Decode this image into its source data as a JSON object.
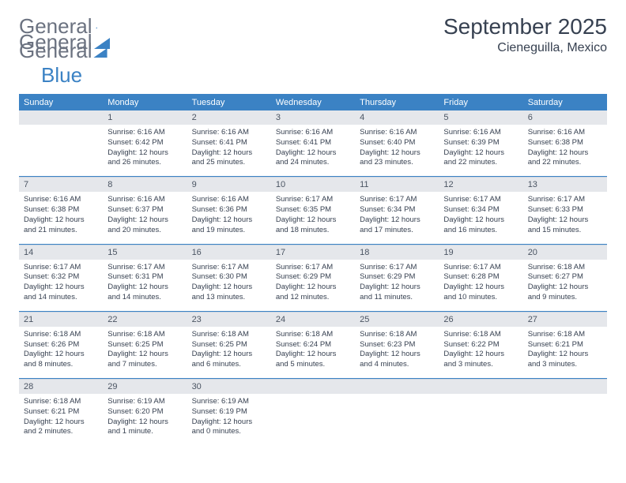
{
  "brand": {
    "part1": "General",
    "part2": "Blue"
  },
  "title": "September 2025",
  "location": "Cieneguilla, Mexico",
  "colors": {
    "brand_blue": "#3b82c4",
    "brand_gray": "#6b7280",
    "header_bg": "#3b82c4",
    "header_text": "#ffffff",
    "daynum_bg": "#e5e7eb",
    "daynum_text": "#4b5563",
    "body_text": "#374151",
    "rule": "#3b82c4"
  },
  "dow": [
    "Sunday",
    "Monday",
    "Tuesday",
    "Wednesday",
    "Thursday",
    "Friday",
    "Saturday"
  ],
  "weeks": [
    {
      "nums": [
        "",
        "1",
        "2",
        "3",
        "4",
        "5",
        "6"
      ],
      "cells": [
        null,
        {
          "sr": "Sunrise: 6:16 AM",
          "ss": "Sunset: 6:42 PM",
          "d1": "Daylight: 12 hours",
          "d2": "and 26 minutes."
        },
        {
          "sr": "Sunrise: 6:16 AM",
          "ss": "Sunset: 6:41 PM",
          "d1": "Daylight: 12 hours",
          "d2": "and 25 minutes."
        },
        {
          "sr": "Sunrise: 6:16 AM",
          "ss": "Sunset: 6:41 PM",
          "d1": "Daylight: 12 hours",
          "d2": "and 24 minutes."
        },
        {
          "sr": "Sunrise: 6:16 AM",
          "ss": "Sunset: 6:40 PM",
          "d1": "Daylight: 12 hours",
          "d2": "and 23 minutes."
        },
        {
          "sr": "Sunrise: 6:16 AM",
          "ss": "Sunset: 6:39 PM",
          "d1": "Daylight: 12 hours",
          "d2": "and 22 minutes."
        },
        {
          "sr": "Sunrise: 6:16 AM",
          "ss": "Sunset: 6:38 PM",
          "d1": "Daylight: 12 hours",
          "d2": "and 22 minutes."
        }
      ]
    },
    {
      "nums": [
        "7",
        "8",
        "9",
        "10",
        "11",
        "12",
        "13"
      ],
      "cells": [
        {
          "sr": "Sunrise: 6:16 AM",
          "ss": "Sunset: 6:38 PM",
          "d1": "Daylight: 12 hours",
          "d2": "and 21 minutes."
        },
        {
          "sr": "Sunrise: 6:16 AM",
          "ss": "Sunset: 6:37 PM",
          "d1": "Daylight: 12 hours",
          "d2": "and 20 minutes."
        },
        {
          "sr": "Sunrise: 6:16 AM",
          "ss": "Sunset: 6:36 PM",
          "d1": "Daylight: 12 hours",
          "d2": "and 19 minutes."
        },
        {
          "sr": "Sunrise: 6:17 AM",
          "ss": "Sunset: 6:35 PM",
          "d1": "Daylight: 12 hours",
          "d2": "and 18 minutes."
        },
        {
          "sr": "Sunrise: 6:17 AM",
          "ss": "Sunset: 6:34 PM",
          "d1": "Daylight: 12 hours",
          "d2": "and 17 minutes."
        },
        {
          "sr": "Sunrise: 6:17 AM",
          "ss": "Sunset: 6:34 PM",
          "d1": "Daylight: 12 hours",
          "d2": "and 16 minutes."
        },
        {
          "sr": "Sunrise: 6:17 AM",
          "ss": "Sunset: 6:33 PM",
          "d1": "Daylight: 12 hours",
          "d2": "and 15 minutes."
        }
      ]
    },
    {
      "nums": [
        "14",
        "15",
        "16",
        "17",
        "18",
        "19",
        "20"
      ],
      "cells": [
        {
          "sr": "Sunrise: 6:17 AM",
          "ss": "Sunset: 6:32 PM",
          "d1": "Daylight: 12 hours",
          "d2": "and 14 minutes."
        },
        {
          "sr": "Sunrise: 6:17 AM",
          "ss": "Sunset: 6:31 PM",
          "d1": "Daylight: 12 hours",
          "d2": "and 14 minutes."
        },
        {
          "sr": "Sunrise: 6:17 AM",
          "ss": "Sunset: 6:30 PM",
          "d1": "Daylight: 12 hours",
          "d2": "and 13 minutes."
        },
        {
          "sr": "Sunrise: 6:17 AM",
          "ss": "Sunset: 6:29 PM",
          "d1": "Daylight: 12 hours",
          "d2": "and 12 minutes."
        },
        {
          "sr": "Sunrise: 6:17 AM",
          "ss": "Sunset: 6:29 PM",
          "d1": "Daylight: 12 hours",
          "d2": "and 11 minutes."
        },
        {
          "sr": "Sunrise: 6:17 AM",
          "ss": "Sunset: 6:28 PM",
          "d1": "Daylight: 12 hours",
          "d2": "and 10 minutes."
        },
        {
          "sr": "Sunrise: 6:18 AM",
          "ss": "Sunset: 6:27 PM",
          "d1": "Daylight: 12 hours",
          "d2": "and 9 minutes."
        }
      ]
    },
    {
      "nums": [
        "21",
        "22",
        "23",
        "24",
        "25",
        "26",
        "27"
      ],
      "cells": [
        {
          "sr": "Sunrise: 6:18 AM",
          "ss": "Sunset: 6:26 PM",
          "d1": "Daylight: 12 hours",
          "d2": "and 8 minutes."
        },
        {
          "sr": "Sunrise: 6:18 AM",
          "ss": "Sunset: 6:25 PM",
          "d1": "Daylight: 12 hours",
          "d2": "and 7 minutes."
        },
        {
          "sr": "Sunrise: 6:18 AM",
          "ss": "Sunset: 6:25 PM",
          "d1": "Daylight: 12 hours",
          "d2": "and 6 minutes."
        },
        {
          "sr": "Sunrise: 6:18 AM",
          "ss": "Sunset: 6:24 PM",
          "d1": "Daylight: 12 hours",
          "d2": "and 5 minutes."
        },
        {
          "sr": "Sunrise: 6:18 AM",
          "ss": "Sunset: 6:23 PM",
          "d1": "Daylight: 12 hours",
          "d2": "and 4 minutes."
        },
        {
          "sr": "Sunrise: 6:18 AM",
          "ss": "Sunset: 6:22 PM",
          "d1": "Daylight: 12 hours",
          "d2": "and 3 minutes."
        },
        {
          "sr": "Sunrise: 6:18 AM",
          "ss": "Sunset: 6:21 PM",
          "d1": "Daylight: 12 hours",
          "d2": "and 3 minutes."
        }
      ]
    },
    {
      "nums": [
        "28",
        "29",
        "30",
        "",
        "",
        "",
        ""
      ],
      "cells": [
        {
          "sr": "Sunrise: 6:18 AM",
          "ss": "Sunset: 6:21 PM",
          "d1": "Daylight: 12 hours",
          "d2": "and 2 minutes."
        },
        {
          "sr": "Sunrise: 6:19 AM",
          "ss": "Sunset: 6:20 PM",
          "d1": "Daylight: 12 hours",
          "d2": "and 1 minute."
        },
        {
          "sr": "Sunrise: 6:19 AM",
          "ss": "Sunset: 6:19 PM",
          "d1": "Daylight: 12 hours",
          "d2": "and 0 minutes."
        },
        null,
        null,
        null,
        null
      ]
    }
  ]
}
